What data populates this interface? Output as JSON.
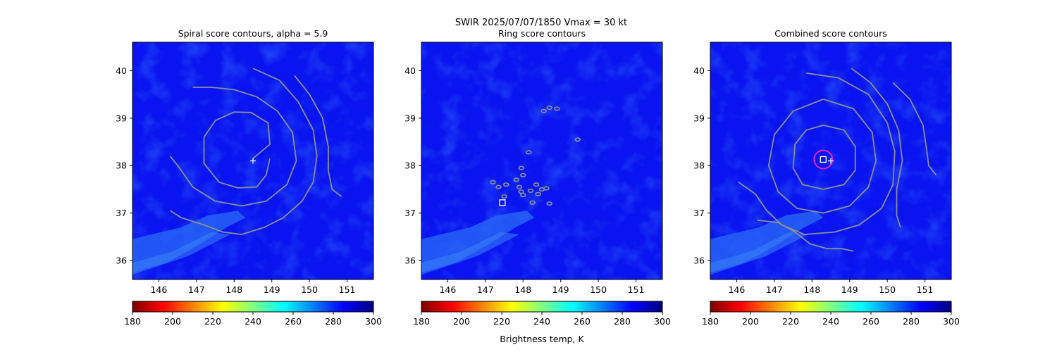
{
  "suptitle": {
    "line1": "SWIR  2025/07/07/1850    Vmax = 30 kt"
  },
  "colormap": {
    "name": "jet_r",
    "stops": [
      "#7f0000",
      "#ff0000",
      "#ff8000",
      "#ffff00",
      "#80ff80",
      "#00ffff",
      "#0080ff",
      "#0000ff",
      "#00007f"
    ]
  },
  "colors": {
    "background": "#0a14f0",
    "cloud": "#2a6cf6",
    "contour": "#8a8f9a",
    "marker": "#ffffff",
    "circle": "#e020c8"
  },
  "chart_data": [
    {
      "type": "heatmap",
      "title": "Spiral score contours, alpha =  5.9",
      "xlim": [
        145.3,
        151.7
      ],
      "ylim": [
        35.6,
        40.6
      ],
      "xticks": [
        "146",
        "147",
        "148",
        "149",
        "150",
        "151"
      ],
      "yticks": [
        "36",
        "37",
        "38",
        "39",
        "40"
      ],
      "colorbar": {
        "range": [
          180,
          300
        ],
        "ticks": [
          "180",
          "200",
          "220",
          "240",
          "260",
          "280",
          "300"
        ],
        "label": ""
      },
      "center_plus": [
        148.5,
        38.1
      ],
      "contours": [
        [
          [
            148.5,
            38.15
          ],
          [
            148.95,
            38.45
          ],
          [
            148.9,
            38.9
          ],
          [
            148.45,
            39.12
          ],
          [
            148.0,
            39.13
          ],
          [
            147.5,
            38.95
          ],
          [
            147.2,
            38.6
          ],
          [
            147.2,
            38.05
          ],
          [
            147.6,
            37.65
          ],
          [
            148.1,
            37.53
          ],
          [
            148.6,
            37.55
          ],
          [
            148.85,
            37.8
          ],
          [
            148.95,
            38.15
          ]
        ],
        [
          [
            146.9,
            39.65
          ],
          [
            147.4,
            39.65
          ],
          [
            148.0,
            39.6
          ],
          [
            148.6,
            39.45
          ],
          [
            149.15,
            39.15
          ],
          [
            149.55,
            38.7
          ],
          [
            149.65,
            38.1
          ],
          [
            149.4,
            37.6
          ],
          [
            148.85,
            37.25
          ],
          [
            148.2,
            37.15
          ],
          [
            147.5,
            37.25
          ],
          [
            146.9,
            37.55
          ],
          [
            146.55,
            37.95
          ],
          [
            146.3,
            38.2
          ]
        ],
        [
          [
            148.5,
            40.05
          ],
          [
            149.2,
            39.8
          ],
          [
            149.7,
            39.35
          ],
          [
            150.1,
            38.75
          ],
          [
            150.2,
            38.2
          ],
          [
            150.1,
            37.65
          ],
          [
            149.8,
            37.25
          ],
          [
            149.3,
            36.9
          ],
          [
            148.8,
            36.7
          ],
          [
            148.2,
            36.55
          ],
          [
            147.7,
            36.6
          ],
          [
            147.2,
            36.75
          ],
          [
            146.6,
            36.9
          ],
          [
            146.3,
            37.05
          ]
        ],
        [
          [
            149.6,
            39.9
          ],
          [
            150.0,
            39.5
          ],
          [
            150.35,
            39.0
          ],
          [
            150.5,
            38.4
          ],
          [
            150.5,
            37.9
          ],
          [
            150.6,
            37.5
          ],
          [
            150.85,
            37.35
          ]
        ]
      ]
    },
    {
      "type": "heatmap",
      "title": "Ring score contours",
      "xlim": [
        145.3,
        151.7
      ],
      "ylim": [
        35.6,
        40.6
      ],
      "xticks": [
        "146",
        "147",
        "148",
        "149",
        "150",
        "151"
      ],
      "yticks": [
        "36",
        "37",
        "38",
        "39",
        "40"
      ],
      "colorbar": {
        "range": [
          180,
          300
        ],
        "ticks": [
          "180",
          "200",
          "220",
          "240",
          "260",
          "280",
          "300"
        ],
        "label": "Brightness temp, K"
      },
      "square": [
        147.45,
        37.22
      ],
      "blobs": [
        [
          148.15,
          38.28
        ],
        [
          148.5,
          37.5
        ],
        [
          148.62,
          37.52
        ],
        [
          148.4,
          37.4
        ],
        [
          148.25,
          37.22
        ],
        [
          148.7,
          37.2
        ],
        [
          147.95,
          37.95
        ],
        [
          148.0,
          37.8
        ],
        [
          147.82,
          37.7
        ],
        [
          147.55,
          37.6
        ],
        [
          147.95,
          37.45
        ],
        [
          148.2,
          37.47
        ],
        [
          148.35,
          37.6
        ],
        [
          148.0,
          37.38
        ],
        [
          147.2,
          37.65
        ],
        [
          147.35,
          37.55
        ],
        [
          148.55,
          39.15
        ],
        [
          148.7,
          39.22
        ],
        [
          148.9,
          39.2
        ],
        [
          149.45,
          38.55
        ],
        [
          147.9,
          37.55
        ],
        [
          147.5,
          37.35
        ]
      ]
    },
    {
      "type": "heatmap",
      "title": "Combined score contours",
      "xlim": [
        145.3,
        151.7
      ],
      "ylim": [
        35.6,
        40.6
      ],
      "xticks": [
        "146",
        "147",
        "148",
        "149",
        "150",
        "151"
      ],
      "yticks": [
        "36",
        "37",
        "38",
        "39",
        "40"
      ],
      "colorbar": {
        "range": [
          180,
          300
        ],
        "ticks": [
          "180",
          "200",
          "220",
          "240",
          "260",
          "280",
          "300"
        ],
        "label": ""
      },
      "center_plus": [
        148.5,
        38.1
      ],
      "square": [
        148.3,
        38.13
      ],
      "circle": [
        148.3,
        38.13
      ],
      "contours": [
        [
          [
            148.3,
            38.85
          ],
          [
            148.85,
            38.75
          ],
          [
            149.15,
            38.4
          ],
          [
            149.15,
            37.9
          ],
          [
            148.85,
            37.6
          ],
          [
            148.3,
            37.5
          ],
          [
            147.75,
            37.6
          ],
          [
            147.5,
            37.95
          ],
          [
            147.55,
            38.45
          ],
          [
            147.85,
            38.75
          ],
          [
            148.3,
            38.85
          ]
        ],
        [
          [
            148.3,
            39.4
          ],
          [
            149.1,
            39.2
          ],
          [
            149.6,
            38.7
          ],
          [
            149.7,
            38.1
          ],
          [
            149.5,
            37.55
          ],
          [
            149.0,
            37.15
          ],
          [
            148.3,
            37.0
          ],
          [
            147.6,
            37.1
          ],
          [
            147.1,
            37.45
          ],
          [
            146.85,
            38.0
          ],
          [
            147.0,
            38.65
          ],
          [
            147.5,
            39.15
          ],
          [
            148.3,
            39.4
          ]
        ],
        [
          [
            147.85,
            39.95
          ],
          [
            148.7,
            39.85
          ],
          [
            149.5,
            39.5
          ],
          [
            150.0,
            38.9
          ],
          [
            150.2,
            38.3
          ],
          [
            150.15,
            37.6
          ],
          [
            149.85,
            37.1
          ],
          [
            149.25,
            36.75
          ],
          [
            148.6,
            36.6
          ],
          [
            147.8,
            36.55
          ],
          [
            147.2,
            36.75
          ],
          [
            146.8,
            37.05
          ],
          [
            146.5,
            37.4
          ],
          [
            146.05,
            37.65
          ]
        ],
        [
          [
            149.05,
            40.05
          ],
          [
            149.55,
            39.75
          ],
          [
            150.0,
            39.3
          ],
          [
            150.3,
            38.75
          ],
          [
            150.4,
            38.1
          ],
          [
            150.25,
            37.5
          ],
          [
            150.25,
            36.95
          ],
          [
            150.35,
            36.7
          ]
        ],
        [
          [
            150.15,
            39.75
          ],
          [
            150.6,
            39.4
          ],
          [
            150.95,
            38.85
          ],
          [
            151.05,
            38.3
          ],
          [
            151.1,
            38.0
          ],
          [
            151.3,
            37.8
          ]
        ],
        [
          [
            146.55,
            36.85
          ],
          [
            147.1,
            36.8
          ],
          [
            147.55,
            36.6
          ],
          [
            147.95,
            36.35
          ],
          [
            148.4,
            36.25
          ],
          [
            148.8,
            36.25
          ],
          [
            149.1,
            36.2
          ]
        ]
      ]
    }
  ]
}
